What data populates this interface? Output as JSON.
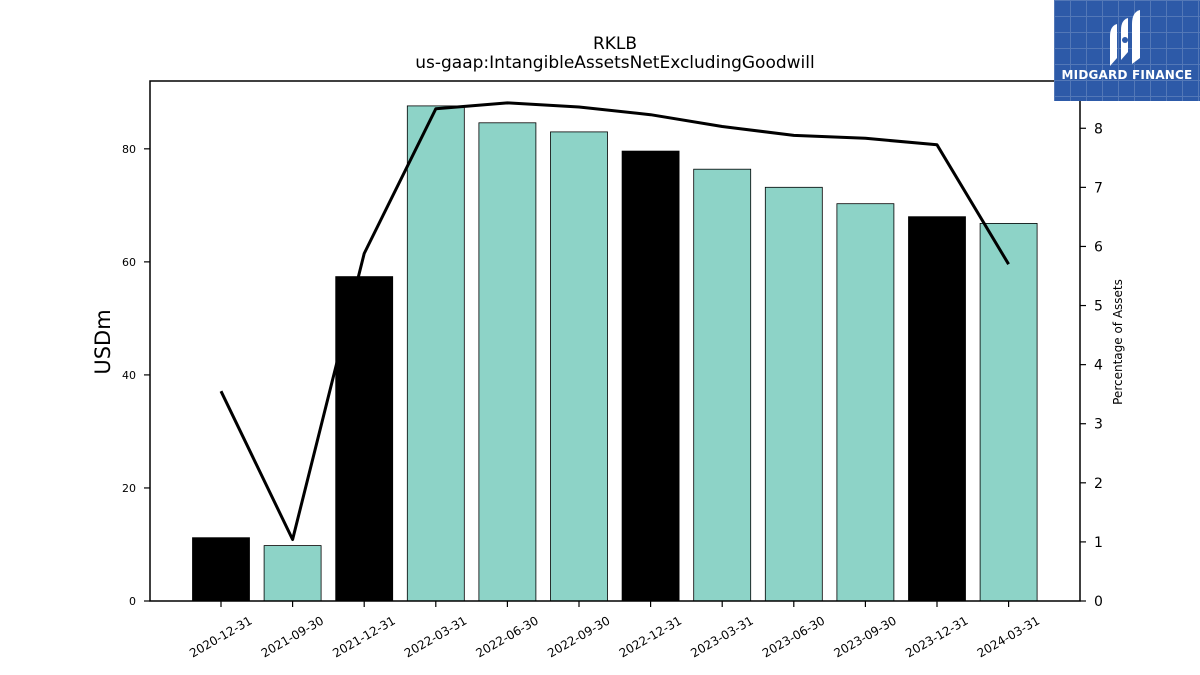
{
  "brand": {
    "logo_text": "MIDGARD FINANCE",
    "bg_color": "#2d5aa8"
  },
  "chart_data": {
    "type": "bar",
    "title": "RKLB",
    "subtitle": "us-gaap:IntangibleAssetsNetExcludingGoodwill",
    "ylabel": "USDm",
    "y2label": "Percentage of Assets",
    "ylim": [
      0,
      92
    ],
    "y2lim": [
      0,
      8.8
    ],
    "yticks": [
      0,
      20,
      40,
      60,
      80
    ],
    "y2ticks": [
      0,
      1,
      2,
      3,
      4,
      5,
      6,
      7,
      8
    ],
    "categories": [
      "2020-12-31",
      "2021-09-30",
      "2021-12-31",
      "2022-03-31",
      "2022-06-30",
      "2022-09-30",
      "2022-12-31",
      "2023-03-31",
      "2023-06-30",
      "2023-09-30",
      "2023-12-31",
      "2024-03-31"
    ],
    "series": [
      {
        "kind": "bar",
        "axis": "left",
        "values": [
          11.2,
          9.8,
          57.4,
          87.6,
          84.6,
          83.0,
          79.6,
          76.4,
          73.2,
          70.3,
          68.0,
          66.8
        ],
        "colors": [
          "#000000",
          "#8dd3c7",
          "#000000",
          "#8dd3c7",
          "#8dd3c7",
          "#8dd3c7",
          "#000000",
          "#8dd3c7",
          "#8dd3c7",
          "#8dd3c7",
          "#000000",
          "#8dd3c7"
        ]
      },
      {
        "kind": "line",
        "axis": "right",
        "color": "#000000",
        "values": [
          3.55,
          1.04,
          5.88,
          8.33,
          8.43,
          8.36,
          8.23,
          8.03,
          7.88,
          7.83,
          7.72,
          5.7
        ]
      }
    ],
    "grid": false
  }
}
